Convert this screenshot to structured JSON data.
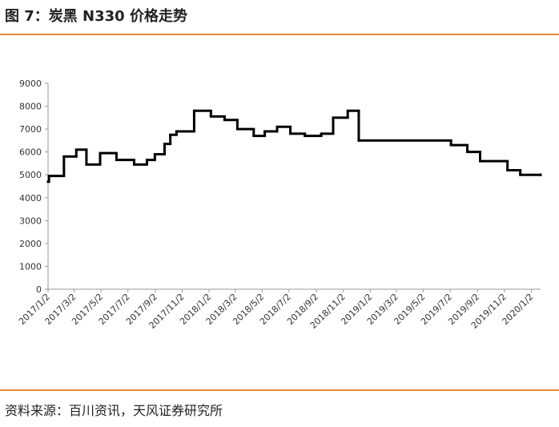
{
  "chart_data": {
    "type": "line",
    "title": "图 7：炭黑 N330 价格走势",
    "source": "资料来源：百川资讯，天风证券研究所",
    "series": [
      {
        "color": "#000000",
        "step": "after",
        "x": [
          "2017/1/2",
          "2017/1/4",
          "2017/2/7",
          "2017/3/7",
          "2017/3/30",
          "2017/4/30",
          "2017/6/6",
          "2017/7/16",
          "2017/8/14",
          "2017/9/1",
          "2017/9/23",
          "2017/10/6",
          "2017/10/20",
          "2017/11/29",
          "2018/1/6",
          "2018/2/6",
          "2018/3/7",
          "2018/4/13",
          "2018/5/8",
          "2018/6/5",
          "2018/7/5",
          "2018/8/7",
          "2018/9/13",
          "2018/10/10",
          "2018/11/12",
          "2018/12/7",
          "2019/7/4",
          "2019/8/10",
          "2019/9/8",
          "2019/11/9",
          "2019/12/8",
          "2020/1/23"
        ],
        "values": [
          4700,
          4950,
          5800,
          6100,
          5450,
          5950,
          5650,
          5450,
          5650,
          5900,
          6350,
          6750,
          6900,
          7800,
          7550,
          7400,
          7000,
          6700,
          6900,
          7100,
          6800,
          6700,
          6800,
          7500,
          7800,
          6500,
          6300,
          6000,
          5600,
          5200,
          5000,
          5000
        ]
      }
    ],
    "xlim": [
      "2017/1/2",
      "2020/1/23"
    ],
    "xticks": [
      "2017/1/2",
      "2017/3/2",
      "2017/5/2",
      "2017/7/2",
      "2017/9/2",
      "2017/11/2",
      "2018/1/2",
      "2018/3/2",
      "2018/5/2",
      "2018/7/2",
      "2018/9/2",
      "2018/11/2",
      "2019/1/2",
      "2019/3/2",
      "2019/5/2",
      "2019/7/2",
      "2019/9/2",
      "2019/11/2",
      "2020/1/2"
    ],
    "ylim": [
      0,
      9000
    ],
    "yticks": [
      0,
      1000,
      2000,
      3000,
      4000,
      5000,
      6000,
      7000,
      8000,
      9000
    ],
    "grid": false
  }
}
